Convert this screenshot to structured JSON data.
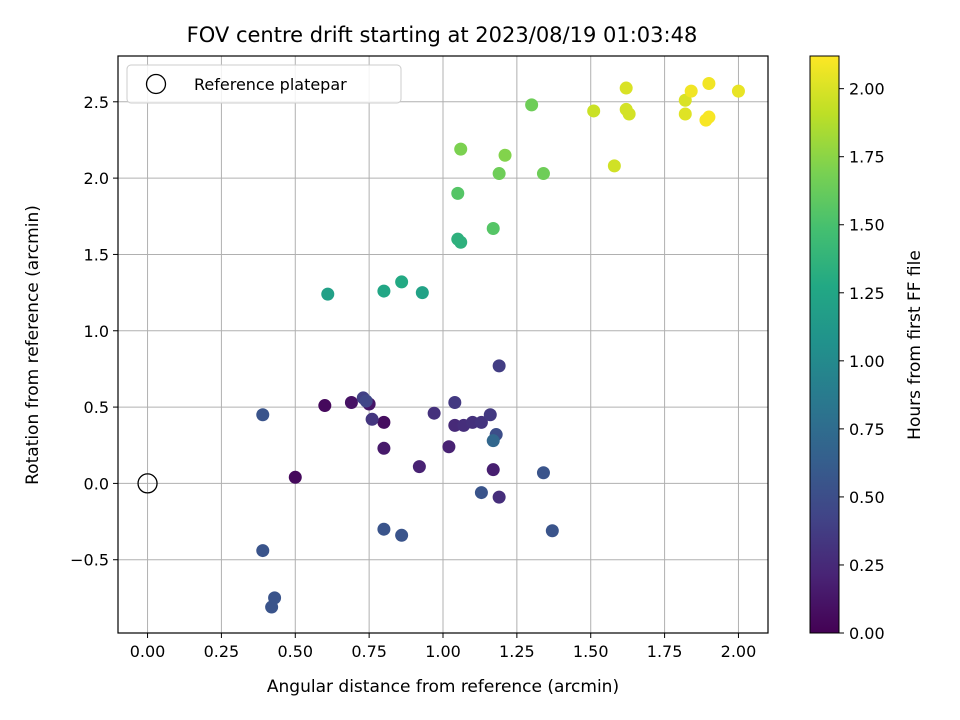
{
  "chart_data": {
    "type": "scatter",
    "title": "FOV centre drift starting at 2023/08/19 01:03:48",
    "xlabel": "Angular distance from reference (arcmin)",
    "ylabel": "Rotation from reference (arcmin)",
    "xlim": [
      -0.1,
      2.1
    ],
    "ylim": [
      -0.98,
      2.8
    ],
    "xticks": [
      0.0,
      0.25,
      0.5,
      0.75,
      1.0,
      1.25,
      1.5,
      1.75,
      2.0
    ],
    "xtick_labels": [
      "0.00",
      "0.25",
      "0.50",
      "0.75",
      "1.00",
      "1.25",
      "1.50",
      "1.75",
      "2.00"
    ],
    "yticks": [
      -0.5,
      0.0,
      0.5,
      1.0,
      1.5,
      2.0,
      2.5
    ],
    "ytick_labels": [
      "−0.5",
      "0.0",
      "0.5",
      "1.0",
      "1.5",
      "2.0",
      "2.5"
    ],
    "grid": true,
    "legend": {
      "placement": "top-left",
      "entries": [
        "Reference platepar"
      ]
    },
    "reference_point": {
      "x": 0.0,
      "y": 0.0,
      "label": "Reference platepar"
    },
    "colorbar": {
      "label": "Hours from first FF file",
      "colormap": "viridis",
      "range": [
        0.0,
        2.12
      ],
      "ticks": [
        0.0,
        0.25,
        0.5,
        0.75,
        1.0,
        1.25,
        1.5,
        1.75,
        2.0
      ],
      "tick_labels": [
        "0.00",
        "0.25",
        "0.50",
        "0.75",
        "1.00",
        "1.25",
        "1.50",
        "1.75",
        "2.00"
      ]
    },
    "series": [
      {
        "points": [
          {
            "x": 0.5,
            "y": 0.04,
            "c": 0.05
          },
          {
            "x": 0.6,
            "y": 0.51,
            "c": 0.05
          },
          {
            "x": 0.69,
            "y": 0.53,
            "c": 0.1
          },
          {
            "x": 0.75,
            "y": 0.52,
            "c": 0.12
          },
          {
            "x": 0.8,
            "y": 0.4,
            "c": 0.07
          },
          {
            "x": 0.8,
            "y": 0.23,
            "c": 0.15
          },
          {
            "x": 0.92,
            "y": 0.11,
            "c": 0.2
          },
          {
            "x": 0.97,
            "y": 0.46,
            "c": 0.3
          },
          {
            "x": 1.02,
            "y": 0.24,
            "c": 0.2
          },
          {
            "x": 1.04,
            "y": 0.38,
            "c": 0.25
          },
          {
            "x": 1.07,
            "y": 0.38,
            "c": 0.28
          },
          {
            "x": 1.1,
            "y": 0.4,
            "c": 0.3
          },
          {
            "x": 1.13,
            "y": 0.4,
            "c": 0.32
          },
          {
            "x": 1.16,
            "y": 0.45,
            "c": 0.35
          },
          {
            "x": 1.17,
            "y": 0.09,
            "c": 0.18
          },
          {
            "x": 1.19,
            "y": -0.09,
            "c": 0.28
          },
          {
            "x": 0.76,
            "y": 0.42,
            "c": 0.33
          },
          {
            "x": 0.73,
            "y": 0.56,
            "c": 0.4
          },
          {
            "x": 0.74,
            "y": 0.54,
            "c": 0.45
          },
          {
            "x": 1.04,
            "y": 0.53,
            "c": 0.35
          },
          {
            "x": 1.19,
            "y": 0.77,
            "c": 0.38
          },
          {
            "x": 1.18,
            "y": 0.32,
            "c": 0.5
          },
          {
            "x": 1.17,
            "y": 0.28,
            "c": 0.7
          },
          {
            "x": 1.13,
            "y": -0.06,
            "c": 0.55
          },
          {
            "x": 1.34,
            "y": 0.07,
            "c": 0.55
          },
          {
            "x": 1.37,
            "y": -0.31,
            "c": 0.55
          },
          {
            "x": 0.39,
            "y": 0.45,
            "c": 0.55
          },
          {
            "x": 0.39,
            "y": -0.44,
            "c": 0.55
          },
          {
            "x": 0.8,
            "y": -0.3,
            "c": 0.55
          },
          {
            "x": 0.86,
            "y": -0.34,
            "c": 0.55
          },
          {
            "x": 0.42,
            "y": -0.81,
            "c": 0.55
          },
          {
            "x": 0.43,
            "y": -0.75,
            "c": 0.55
          },
          {
            "x": 0.61,
            "y": 1.24,
            "c": 1.2
          },
          {
            "x": 0.8,
            "y": 1.26,
            "c": 1.25
          },
          {
            "x": 0.86,
            "y": 1.32,
            "c": 1.28
          },
          {
            "x": 0.93,
            "y": 1.25,
            "c": 1.22
          },
          {
            "x": 1.05,
            "y": 1.6,
            "c": 1.35
          },
          {
            "x": 1.06,
            "y": 1.58,
            "c": 1.35
          },
          {
            "x": 1.17,
            "y": 1.67,
            "c": 1.55
          },
          {
            "x": 1.05,
            "y": 1.9,
            "c": 1.55
          },
          {
            "x": 1.19,
            "y": 2.03,
            "c": 1.65
          },
          {
            "x": 1.34,
            "y": 2.03,
            "c": 1.65
          },
          {
            "x": 1.06,
            "y": 2.19,
            "c": 1.7
          },
          {
            "x": 1.21,
            "y": 2.15,
            "c": 1.72
          },
          {
            "x": 1.3,
            "y": 2.48,
            "c": 1.65
          },
          {
            "x": 1.51,
            "y": 2.44,
            "c": 1.95
          },
          {
            "x": 1.58,
            "y": 2.08,
            "c": 1.97
          },
          {
            "x": 1.62,
            "y": 2.45,
            "c": 1.98
          },
          {
            "x": 1.63,
            "y": 2.42,
            "c": 1.98
          },
          {
            "x": 1.62,
            "y": 2.59,
            "c": 2.0
          },
          {
            "x": 1.82,
            "y": 2.42,
            "c": 2.02
          },
          {
            "x": 1.82,
            "y": 2.51,
            "c": 2.0
          },
          {
            "x": 1.84,
            "y": 2.57,
            "c": 2.08
          },
          {
            "x": 1.89,
            "y": 2.38,
            "c": 2.1
          },
          {
            "x": 1.9,
            "y": 2.4,
            "c": 2.1
          },
          {
            "x": 1.9,
            "y": 2.62,
            "c": 2.08
          },
          {
            "x": 2.0,
            "y": 2.57,
            "c": 2.05
          }
        ]
      }
    ]
  }
}
